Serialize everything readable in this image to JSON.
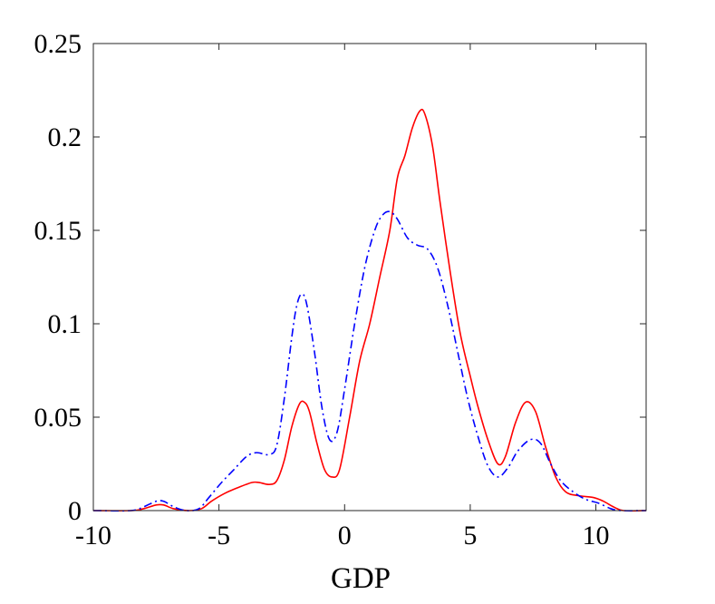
{
  "chart_data": {
    "type": "line",
    "title": "",
    "xlabel": "GDP",
    "ylabel": "",
    "xlim": [
      -10,
      12
    ],
    "ylim": [
      0,
      0.25
    ],
    "xticks": [
      -10,
      -5,
      0,
      5,
      10
    ],
    "xtick_labels": [
      "-10",
      "-5",
      "0",
      "5",
      "10"
    ],
    "yticks": [
      0,
      0.05,
      0.1,
      0.15,
      0.2,
      0.25
    ],
    "ytick_labels": [
      "0",
      "0.05",
      "0.1",
      "0.15",
      "0.2",
      "0.25"
    ],
    "grid": false,
    "legend": "none",
    "series": [
      {
        "color": "#ff0000",
        "style": "solid",
        "points": [
          [
            -10,
            0
          ],
          [
            -8.5,
            0.0
          ],
          [
            -8,
            0.001
          ],
          [
            -7.5,
            0.003
          ],
          [
            -7.2,
            0.003
          ],
          [
            -6.8,
            0.001
          ],
          [
            -6.2,
            0.0
          ],
          [
            -5.7,
            0.001
          ],
          [
            -5.3,
            0.005
          ],
          [
            -4.8,
            0.009
          ],
          [
            -4.3,
            0.012
          ],
          [
            -3.7,
            0.015
          ],
          [
            -3.4,
            0.015
          ],
          [
            -3.0,
            0.014
          ],
          [
            -2.7,
            0.016
          ],
          [
            -2.4,
            0.027
          ],
          [
            -2.1,
            0.045
          ],
          [
            -1.8,
            0.057
          ],
          [
            -1.6,
            0.058
          ],
          [
            -1.4,
            0.053
          ],
          [
            -1.1,
            0.036
          ],
          [
            -0.8,
            0.022
          ],
          [
            -0.5,
            0.018
          ],
          [
            -0.2,
            0.022
          ],
          [
            0.2,
            0.05
          ],
          [
            0.6,
            0.08
          ],
          [
            1.0,
            0.1
          ],
          [
            1.4,
            0.125
          ],
          [
            1.8,
            0.15
          ],
          [
            2.1,
            0.178
          ],
          [
            2.4,
            0.19
          ],
          [
            2.7,
            0.205
          ],
          [
            3.0,
            0.214
          ],
          [
            3.2,
            0.212
          ],
          [
            3.5,
            0.195
          ],
          [
            3.8,
            0.165
          ],
          [
            4.2,
            0.128
          ],
          [
            4.6,
            0.095
          ],
          [
            5.0,
            0.072
          ],
          [
            5.3,
            0.056
          ],
          [
            5.7,
            0.038
          ],
          [
            6.1,
            0.025
          ],
          [
            6.4,
            0.029
          ],
          [
            6.8,
            0.047
          ],
          [
            7.2,
            0.058
          ],
          [
            7.6,
            0.053
          ],
          [
            8.0,
            0.034
          ],
          [
            8.4,
            0.018
          ],
          [
            8.8,
            0.01
          ],
          [
            9.3,
            0.008
          ],
          [
            9.9,
            0.007
          ],
          [
            10.3,
            0.005
          ],
          [
            10.7,
            0.002
          ],
          [
            11.1,
            0.0
          ],
          [
            12,
            0
          ]
        ]
      },
      {
        "color": "#0000ff",
        "style": "dashdot",
        "points": [
          [
            -10,
            0
          ],
          [
            -8.5,
            0.0
          ],
          [
            -8,
            0.002
          ],
          [
            -7.5,
            0.005
          ],
          [
            -7.2,
            0.005
          ],
          [
            -6.8,
            0.002
          ],
          [
            -6.3,
            0.0
          ],
          [
            -5.8,
            0.001
          ],
          [
            -5.4,
            0.007
          ],
          [
            -4.9,
            0.015
          ],
          [
            -4.4,
            0.022
          ],
          [
            -3.9,
            0.029
          ],
          [
            -3.5,
            0.031
          ],
          [
            -3.0,
            0.03
          ],
          [
            -2.7,
            0.035
          ],
          [
            -2.4,
            0.06
          ],
          [
            -2.1,
            0.093
          ],
          [
            -1.9,
            0.11
          ],
          [
            -1.7,
            0.116
          ],
          [
            -1.5,
            0.11
          ],
          [
            -1.2,
            0.085
          ],
          [
            -0.9,
            0.055
          ],
          [
            -0.6,
            0.038
          ],
          [
            -0.3,
            0.042
          ],
          [
            0.0,
            0.065
          ],
          [
            0.4,
            0.1
          ],
          [
            0.8,
            0.13
          ],
          [
            1.2,
            0.15
          ],
          [
            1.5,
            0.158
          ],
          [
            1.8,
            0.16
          ],
          [
            2.1,
            0.156
          ],
          [
            2.5,
            0.146
          ],
          [
            2.9,
            0.142
          ],
          [
            3.3,
            0.14
          ],
          [
            3.7,
            0.13
          ],
          [
            4.1,
            0.11
          ],
          [
            4.5,
            0.085
          ],
          [
            4.9,
            0.06
          ],
          [
            5.3,
            0.04
          ],
          [
            5.7,
            0.024
          ],
          [
            6.1,
            0.018
          ],
          [
            6.5,
            0.023
          ],
          [
            6.9,
            0.032
          ],
          [
            7.4,
            0.038
          ],
          [
            7.8,
            0.036
          ],
          [
            8.2,
            0.025
          ],
          [
            8.6,
            0.016
          ],
          [
            9.1,
            0.01
          ],
          [
            9.6,
            0.006
          ],
          [
            10.1,
            0.004
          ],
          [
            10.6,
            0.001
          ],
          [
            11.0,
            0.0
          ],
          [
            12,
            0
          ]
        ]
      }
    ]
  }
}
